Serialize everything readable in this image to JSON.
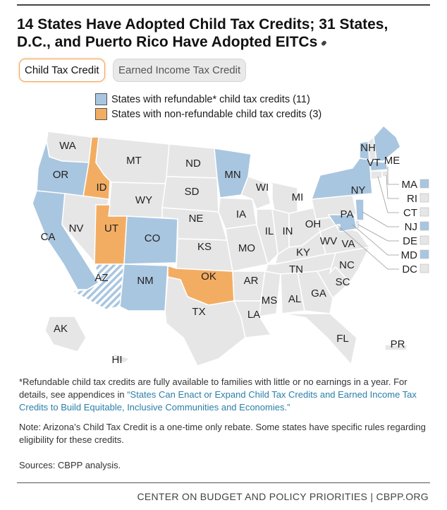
{
  "title": "14 States Have Adopted Child Tax Credits; 31 States, D.C., and Puerto Rico Have Adopted EITCs",
  "title_line1": "14 States Have Adopted Child Tax Credits; 31 States,",
  "title_line2": "D.C., and Puerto Rico Have Adopted EITCs",
  "link_icon": "link-icon",
  "tabs": [
    {
      "label": "Child Tax Credit",
      "active": true
    },
    {
      "label": "Earned Income Tax Credit",
      "active": false
    }
  ],
  "legend": [
    {
      "label": "States with refundable* child tax credits (11)",
      "color": "#a9c6e0"
    },
    {
      "label": "States with non-refundable child tax credits (3)",
      "color": "#f3ad62"
    }
  ],
  "colors": {
    "refundable": "#a9c6e0",
    "nonrefundable": "#f3ad62",
    "none": "#e6e6e6",
    "border": "#ffffff",
    "hatch": "#a9c6e0"
  },
  "states": {
    "WA": "none",
    "OR": "refundable",
    "CA": "refundable",
    "ID": "nonrefundable",
    "NV": "none",
    "MT": "none",
    "WY": "none",
    "UT": "nonrefundable",
    "AZ": "hatched",
    "CO": "refundable",
    "NM": "refundable",
    "ND": "none",
    "SD": "none",
    "NE": "none",
    "KS": "none",
    "OK": "nonrefundable",
    "TX": "none",
    "MN": "refundable",
    "IA": "none",
    "MO": "none",
    "AR": "none",
    "LA": "none",
    "WI": "none",
    "IL": "none",
    "MI": "none",
    "IN": "none",
    "OH": "none",
    "KY": "none",
    "TN": "none",
    "MS": "none",
    "AL": "none",
    "GA": "none",
    "FL": "none",
    "SC": "none",
    "NC": "none",
    "VA": "none",
    "WV": "none",
    "PA": "none",
    "NY": "refundable",
    "VT": "refundable",
    "NH": "none",
    "ME": "refundable",
    "MA": "refundable",
    "RI": "none",
    "CT": "none",
    "NJ": "refundable",
    "DE": "none",
    "MD": "refundable",
    "DC": "none",
    "AK": "none",
    "HI": "none",
    "PR": "none"
  },
  "small_states": [
    {
      "abbr": "MA",
      "status": "refundable"
    },
    {
      "abbr": "RI",
      "status": "none"
    },
    {
      "abbr": "CT",
      "status": "none"
    },
    {
      "abbr": "NJ",
      "status": "refundable"
    },
    {
      "abbr": "DE",
      "status": "none"
    },
    {
      "abbr": "MD",
      "status": "refundable"
    },
    {
      "abbr": "DC",
      "status": "none"
    }
  ],
  "footnotes": {
    "refundable_pre": "*Refundable child tax credits are fully available to families with little or no earnings in a year. For details, see appendices in ",
    "refundable_link": "“States Can Enact or Expand Child Tax Credits and Earned Income Tax Credits to Build Equitable, Inclusive Communities and Economies.”",
    "note": "Note: Arizona’s Child Tax Credit is a one-time only rebate. Some states have specific rules regarding eligibility for these credits.",
    "sources": "Sources: CBPP analysis."
  },
  "footer": "CENTER ON BUDGET AND POLICY PRIORITIES | CBPP.ORG"
}
